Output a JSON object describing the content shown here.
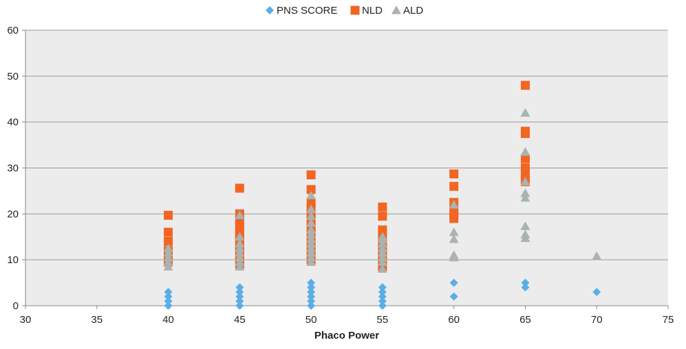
{
  "chart_data": {
    "type": "scatter",
    "xlabel": "Phaco Power",
    "ylabel": "",
    "xlim": [
      30,
      75
    ],
    "ylim": [
      0,
      60
    ],
    "xticks": [
      "30",
      "35",
      "40",
      "45",
      "50",
      "55",
      "60",
      "65",
      "70",
      "75"
    ],
    "yticks": [
      "0",
      "10",
      "20",
      "30",
      "40",
      "50",
      "60"
    ],
    "grid": true,
    "legend_position": "top-center",
    "series": [
      {
        "name": "PNS SCORE",
        "marker": "diamond",
        "color": "#5aaee8",
        "points": [
          [
            40,
            0
          ],
          [
            40,
            1
          ],
          [
            40,
            2
          ],
          [
            40,
            3
          ],
          [
            45,
            0
          ],
          [
            45,
            1
          ],
          [
            45,
            2
          ],
          [
            45,
            3
          ],
          [
            45,
            4
          ],
          [
            50,
            0
          ],
          [
            50,
            1
          ],
          [
            50,
            2
          ],
          [
            50,
            3
          ],
          [
            50,
            4
          ],
          [
            50,
            5
          ],
          [
            55,
            0
          ],
          [
            55,
            1
          ],
          [
            55,
            2
          ],
          [
            55,
            3
          ],
          [
            55,
            4
          ],
          [
            60,
            2
          ],
          [
            60,
            5
          ],
          [
            65,
            4
          ],
          [
            65,
            5
          ],
          [
            70,
            3
          ]
        ]
      },
      {
        "name": "NLD",
        "marker": "square",
        "color": "#f26522",
        "points": [
          [
            40,
            9.5
          ],
          [
            40,
            10.5
          ],
          [
            40,
            12
          ],
          [
            40,
            14
          ],
          [
            40,
            16
          ],
          [
            40,
            19.7
          ],
          [
            45,
            9
          ],
          [
            45,
            10
          ],
          [
            45,
            11
          ],
          [
            45,
            12
          ],
          [
            45,
            13
          ],
          [
            45,
            14
          ],
          [
            45,
            15
          ],
          [
            45,
            16
          ],
          [
            45,
            17
          ],
          [
            45,
            18.5
          ],
          [
            45,
            20
          ],
          [
            45,
            25.6
          ],
          [
            50,
            10
          ],
          [
            50,
            11
          ],
          [
            50,
            12
          ],
          [
            50,
            13
          ],
          [
            50,
            14
          ],
          [
            50,
            15
          ],
          [
            50,
            16
          ],
          [
            50,
            17
          ],
          [
            50,
            18
          ],
          [
            50,
            19
          ],
          [
            50,
            20
          ],
          [
            50,
            21
          ],
          [
            50,
            22.5
          ],
          [
            50,
            25.3
          ],
          [
            50,
            28.5
          ],
          [
            55,
            8.5
          ],
          [
            55,
            9.5
          ],
          [
            55,
            10.5
          ],
          [
            55,
            11.5
          ],
          [
            55,
            12.5
          ],
          [
            55,
            13.5
          ],
          [
            55,
            15
          ],
          [
            55,
            16.5
          ],
          [
            55,
            19.5
          ],
          [
            55,
            21.5
          ],
          [
            60,
            19
          ],
          [
            60,
            20
          ],
          [
            60,
            21
          ],
          [
            60,
            22.5
          ],
          [
            60,
            26
          ],
          [
            60,
            28.7
          ],
          [
            65,
            27
          ],
          [
            65,
            28
          ],
          [
            65,
            29
          ],
          [
            65,
            30
          ],
          [
            65,
            32
          ],
          [
            65,
            37.5
          ],
          [
            65,
            38
          ],
          [
            65,
            48
          ]
        ]
      },
      {
        "name": "ALD",
        "marker": "triangle",
        "color": "#aab3b0",
        "points": [
          [
            40,
            8.5
          ],
          [
            40,
            9.5
          ],
          [
            40,
            10.5
          ],
          [
            40,
            11.5
          ],
          [
            40,
            12.5
          ],
          [
            45,
            8.5
          ],
          [
            45,
            9.5
          ],
          [
            45,
            10.5
          ],
          [
            45,
            11.5
          ],
          [
            45,
            12.5
          ],
          [
            45,
            13.5
          ],
          [
            45,
            15
          ],
          [
            45,
            19.7
          ],
          [
            50,
            9.5
          ],
          [
            50,
            10.5
          ],
          [
            50,
            11.5
          ],
          [
            50,
            12.5
          ],
          [
            50,
            13.5
          ],
          [
            50,
            14.5
          ],
          [
            50,
            15.5
          ],
          [
            50,
            16.5
          ],
          [
            50,
            18
          ],
          [
            50,
            19.5
          ],
          [
            50,
            21
          ],
          [
            50,
            24
          ],
          [
            55,
            8
          ],
          [
            55,
            9.5
          ],
          [
            55,
            10.5
          ],
          [
            55,
            11.5
          ],
          [
            55,
            12.5
          ],
          [
            55,
            13.5
          ],
          [
            55,
            14.5
          ],
          [
            55,
            15
          ],
          [
            60,
            10.5
          ],
          [
            60,
            11
          ],
          [
            60,
            14.5
          ],
          [
            60,
            16
          ],
          [
            60,
            22
          ],
          [
            65,
            14.7
          ],
          [
            65,
            15.5
          ],
          [
            65,
            17.3
          ],
          [
            65,
            23.5
          ],
          [
            65,
            24.5
          ],
          [
            65,
            27
          ],
          [
            65,
            33.5
          ],
          [
            65,
            42
          ],
          [
            70,
            10.8
          ]
        ]
      }
    ]
  }
}
